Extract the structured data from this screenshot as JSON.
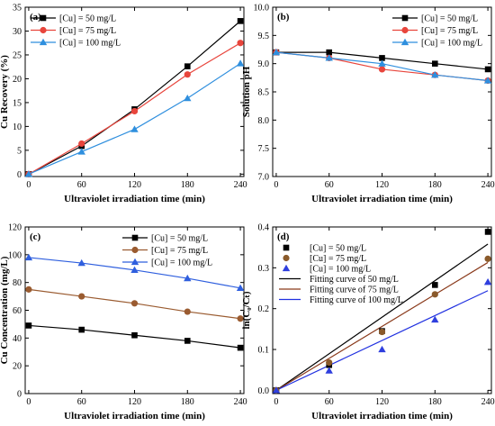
{
  "chart_data": [
    {
      "panel_label": "(a)",
      "type": "line",
      "xlabel": "Ultraviolet irradiation time (min)",
      "ylabel": "Cu Recovery (%)",
      "xlim": [
        -4,
        244
      ],
      "ylim": [
        -0.5,
        35
      ],
      "xticks": [
        0,
        60,
        120,
        180,
        240
      ],
      "yticks": [
        0,
        5,
        10,
        15,
        20,
        25,
        30,
        35
      ],
      "x": [
        0,
        60,
        120,
        180,
        240
      ],
      "legend_position": "top-left",
      "series": [
        {
          "name": "[Cu] = 50 mg/L",
          "color": "#000000",
          "marker": "square",
          "values": [
            0,
            5.9,
            13.6,
            22.6,
            32.1
          ]
        },
        {
          "name": "[Cu] = 75 mg/L",
          "color": "#e8453c",
          "marker": "circle",
          "values": [
            0,
            6.4,
            13.2,
            20.9,
            27.5
          ]
        },
        {
          "name": "[Cu] = 100 mg/L",
          "color": "#2f8fde",
          "marker": "triangle",
          "values": [
            0,
            4.7,
            9.4,
            15.9,
            23.2
          ]
        }
      ]
    },
    {
      "panel_label": "(b)",
      "type": "line",
      "xlabel": "Ultraviolet irradiation time (min)",
      "ylabel": "Solution pH",
      "xlim": [
        -4,
        244
      ],
      "ylim": [
        7.0,
        10.0
      ],
      "xticks": [
        0,
        60,
        120,
        180,
        240
      ],
      "yticks": [
        7.0,
        7.5,
        8.0,
        8.5,
        9.0,
        9.5,
        10.0
      ],
      "x": [
        0,
        60,
        120,
        180,
        240
      ],
      "legend_position": "top-right",
      "series": [
        {
          "name": "[Cu] = 50 mg/L",
          "color": "#000000",
          "marker": "square",
          "values": [
            9.2,
            9.2,
            9.1,
            9.0,
            8.9
          ]
        },
        {
          "name": "[Cu] = 75 mg/L",
          "color": "#e8453c",
          "marker": "circle",
          "values": [
            9.2,
            9.1,
            8.9,
            8.8,
            8.7
          ]
        },
        {
          "name": "[Cu] = 100 mg/L",
          "color": "#2f8fde",
          "marker": "triangle",
          "values": [
            9.2,
            9.1,
            9.0,
            8.8,
            8.7
          ]
        }
      ]
    },
    {
      "panel_label": "(c)",
      "type": "line",
      "xlabel": "Ultraviolet irradiation time (min)",
      "ylabel": "Cu Concentration (mg/L)",
      "xlim": [
        -4,
        244
      ],
      "ylim": [
        0,
        120
      ],
      "xticks": [
        0,
        60,
        120,
        180,
        240
      ],
      "yticks": [
        0,
        20,
        40,
        60,
        80,
        100,
        120
      ],
      "x": [
        0,
        60,
        120,
        180,
        240
      ],
      "legend_position": "top-right",
      "series": [
        {
          "name": "[Cu] = 50 mg/L",
          "color": "#000000",
          "marker": "square",
          "values": [
            49,
            46,
            42,
            38,
            33
          ]
        },
        {
          "name": "[Cu] = 75 mg/L",
          "color": "#9a5b30",
          "marker": "circle",
          "values": [
            75,
            70,
            65,
            59,
            54
          ]
        },
        {
          "name": "[Cu] = 100 mg/L",
          "color": "#2f5fde",
          "marker": "triangle",
          "values": [
            98,
            94,
            89,
            83,
            76
          ]
        }
      ]
    },
    {
      "panel_label": "(d)",
      "type": "scatter",
      "xlabel": "Ultraviolet irradiation time (min)",
      "ylabel": "ln(C₀/Cₜ)",
      "xlim": [
        -4,
        244
      ],
      "ylim": [
        -0.008,
        0.4
      ],
      "xticks": [
        0,
        60,
        120,
        180,
        240
      ],
      "yticks": [
        0.0,
        0.1,
        0.2,
        0.3,
        0.4
      ],
      "x": [
        0,
        60,
        120,
        180,
        240
      ],
      "legend_position": "top-left",
      "series": [
        {
          "name": "[Cu] = 50 mg/L",
          "color": "#000000",
          "marker": "square",
          "values": [
            0,
            0.062,
            0.145,
            0.258,
            0.388
          ]
        },
        {
          "name": "[Cu] = 75 mg/L",
          "color": "#8a5a2b",
          "marker": "circle",
          "values": [
            0,
            0.068,
            0.143,
            0.235,
            0.322
          ]
        },
        {
          "name": "[Cu] = 100 mg/L",
          "color": "#2f3fde",
          "marker": "triangle",
          "values": [
            0,
            0.048,
            0.1,
            0.173,
            0.265
          ]
        }
      ],
      "fits": [
        {
          "name": "Fitting curve of 50 mg/L",
          "color": "#000000",
          "x": [
            0,
            240
          ],
          "y": [
            0,
            0.358
          ]
        },
        {
          "name": "Fitting curve of 75 mg/L",
          "color": "#8a3a1b",
          "x": [
            0,
            240
          ],
          "y": [
            0,
            0.313
          ]
        },
        {
          "name": "Fitting curve of 100 mg/L",
          "color": "#2030e0",
          "x": [
            0,
            240
          ],
          "y": [
            0,
            0.244
          ]
        }
      ]
    }
  ]
}
